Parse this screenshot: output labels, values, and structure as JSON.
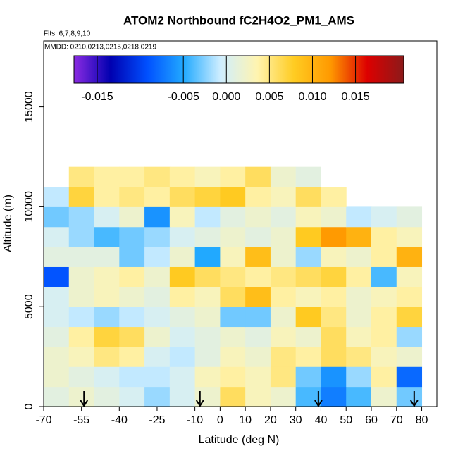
{
  "chart_data": {
    "type": "heatmap",
    "title": "ATOM2 Northbound fC2H4O2_PM1_AMS",
    "subtitle": "Flts: 6,7,8,9,10",
    "note": "MMDD: 0210,0213,0215,0218,0219",
    "xlabel": "Latitude (deg N)",
    "ylabel": "Altitude (m)",
    "xlim": [
      -70,
      86
    ],
    "ylim": [
      0,
      18300
    ],
    "xticks": [
      -70,
      -55,
      -40,
      -25,
      -10,
      0,
      10,
      20,
      30,
      40,
      50,
      60,
      70,
      80
    ],
    "yticks": [
      0,
      5000,
      10000,
      15000
    ],
    "x_edges": [
      -70,
      -60,
      -50,
      -40,
      -30,
      -20,
      -10,
      0,
      10,
      20,
      30,
      40,
      50,
      60,
      70,
      80
    ],
    "y_edges": [
      0,
      1000,
      2000,
      3000,
      4000,
      5000,
      6000,
      7000,
      8000,
      9000,
      10000,
      11000,
      12000
    ],
    "values": [
      [
        0.001,
        0.002,
        0.001,
        0.0,
        -0.002,
        0.0,
        0.002,
        0.006,
        0.003,
        0.002,
        -0.004,
        -0.007,
        -0.004,
        0.002,
        -0.003
      ],
      [
        0.002,
        0.001,
        0.0,
        -0.001,
        -0.001,
        0.0,
        0.003,
        0.004,
        0.003,
        0.005,
        -0.003,
        -0.006,
        -0.002,
        0.004,
        -0.008
      ],
      [
        0.002,
        0.003,
        0.005,
        0.004,
        0.0,
        -0.001,
        0.001,
        0.003,
        0.002,
        0.005,
        0.004,
        0.006,
        0.005,
        0.003,
        0.002
      ],
      [
        0.001,
        0.004,
        0.007,
        0.006,
        0.002,
        0.0,
        0.001,
        0.002,
        0.001,
        0.003,
        0.002,
        0.006,
        0.003,
        0.004,
        -0.002
      ],
      [
        0.0,
        -0.001,
        -0.002,
        -0.001,
        0.0,
        0.001,
        0.002,
        -0.003,
        -0.003,
        0.002,
        0.008,
        0.005,
        0.002,
        0.004,
        0.007
      ],
      [
        0.0,
        0.002,
        0.003,
        0.002,
        0.001,
        0.004,
        0.003,
        0.006,
        0.009,
        0.004,
        0.003,
        0.004,
        0.002,
        0.003,
        0.004
      ],
      [
        -0.009,
        0.002,
        0.003,
        0.004,
        0.002,
        0.008,
        0.006,
        0.005,
        0.004,
        0.005,
        0.006,
        0.007,
        0.004,
        -0.004,
        0.003
      ],
      [
        0.001,
        0.001,
        0.001,
        -0.003,
        -0.001,
        0.002,
        -0.005,
        0.003,
        0.009,
        0.002,
        -0.002,
        0.003,
        0.002,
        0.004,
        0.01
      ],
      [
        0.0,
        -0.002,
        -0.004,
        -0.003,
        -0.002,
        0.0,
        0.001,
        0.002,
        0.001,
        0.002,
        0.008,
        0.012,
        0.01,
        0.004,
        0.003
      ],
      [
        -0.003,
        -0.002,
        0.0,
        0.002,
        -0.006,
        0.003,
        -0.001,
        0.001,
        0.002,
        0.001,
        0.003,
        0.002,
        -0.001,
        0.0,
        0.001
      ],
      [
        -0.001,
        0.007,
        0.004,
        0.005,
        0.004,
        0.006,
        0.007,
        0.008,
        0.004,
        0.003,
        0.006,
        0.004,
        null,
        null,
        null
      ],
      [
        null,
        0.005,
        0.004,
        0.004,
        0.005,
        0.004,
        0.003,
        0.004,
        0.006,
        0.002,
        0.001,
        null,
        null,
        null,
        null
      ]
    ],
    "clim": [
      -0.0177,
      0.0206
    ],
    "colorscale": [
      "#8b2be2",
      "#0000b0",
      "#0050ff",
      "#22aaff",
      "#cfeeff",
      "#fff4b0",
      "#ffcc22",
      "#ff9900",
      "#dd0000",
      "#8b1a1a"
    ],
    "cticks": [
      {
        "value": -0.015,
        "label": "-0.015"
      },
      {
        "value": -0.005,
        "label": "-0.005"
      },
      {
        "value": 0,
        "label": "0.000"
      },
      {
        "value": 0.005,
        "label": "0.005"
      },
      {
        "value": 0.01,
        "label": "0.010"
      },
      {
        "value": 0.015,
        "label": "0.015"
      }
    ],
    "arrows": [
      -54,
      -8,
      39,
      77
    ]
  }
}
